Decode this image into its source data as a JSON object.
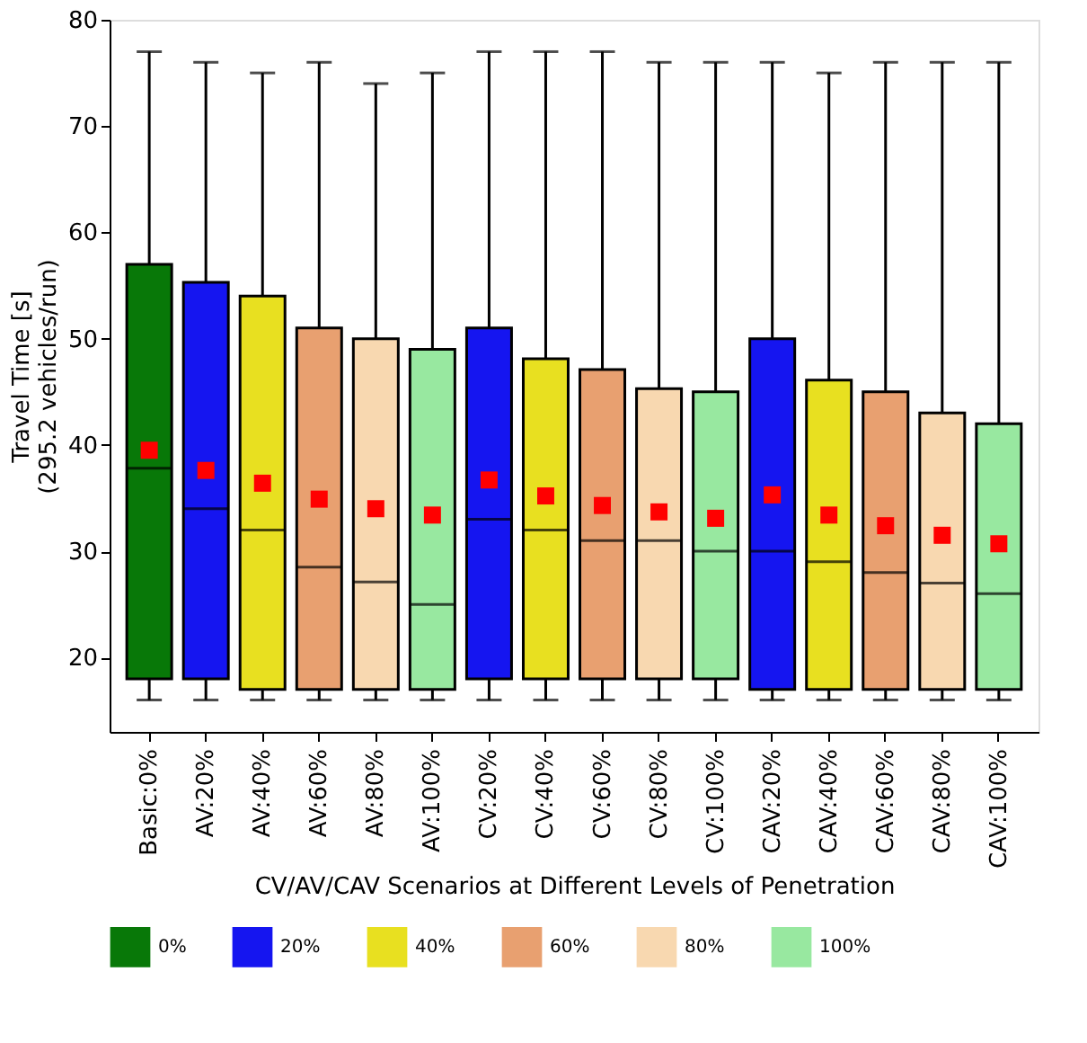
{
  "chart_data": {
    "type": "box",
    "xlabel": "CV/AV/CAV Scenarios at Different Levels of Penetration",
    "ylabel": "Travel Time [s]\n(295.2 vehicles/run)",
    "categories": [
      "Basic:0%",
      "AV:20%",
      "AV:40%",
      "AV:60%",
      "AV:80%",
      "AV:100%",
      "CV:20%",
      "CV:40%",
      "CV:60%",
      "CV:80%",
      "CV:100%",
      "CAV:20%",
      "CAV:40%",
      "CAV:60%",
      "CAV:80%",
      "CAV:100%"
    ],
    "ylim": [
      13,
      80
    ],
    "yticks": [
      20,
      30,
      40,
      50,
      60,
      70,
      80
    ],
    "grid": false,
    "legend": "bottom",
    "series": [
      {
        "name": "0%",
        "color": "#087808",
        "boxes": [
          {
            "low": 16,
            "q1": 18,
            "median": 37.8,
            "q3": 57,
            "high": 77,
            "mean": 39.5
          },
          null,
          null,
          null,
          null,
          null,
          null,
          null,
          null,
          null,
          null,
          null,
          null,
          null,
          null,
          null
        ]
      },
      {
        "name": "20%",
        "color": "#1515f0",
        "boxes": [
          null,
          {
            "low": 16,
            "q1": 18,
            "median": 34,
            "q3": 55.3,
            "high": 76,
            "mean": 37.6
          },
          null,
          null,
          null,
          null,
          {
            "low": 16,
            "q1": 18,
            "median": 33,
            "q3": 51,
            "high": 77,
            "mean": 36.7
          },
          null,
          null,
          null,
          null,
          {
            "low": 16,
            "q1": 17,
            "median": 30,
            "q3": 50,
            "high": 76,
            "mean": 35.3
          },
          null,
          null,
          null,
          null
        ]
      },
      {
        "name": "40%",
        "color": "#e8e020",
        "boxes": [
          null,
          null,
          {
            "low": 16,
            "q1": 17,
            "median": 32,
            "q3": 54,
            "high": 75,
            "mean": 36.4
          },
          null,
          null,
          null,
          null,
          {
            "low": 16,
            "q1": 18,
            "median": 32,
            "q3": 48.1,
            "high": 77,
            "mean": 35.2
          },
          null,
          null,
          null,
          null,
          {
            "low": 16,
            "q1": 17,
            "median": 29,
            "q3": 46.1,
            "high": 75,
            "mean": 33.4
          },
          null,
          null,
          null
        ]
      },
      {
        "name": "60%",
        "color": "#e8a070",
        "boxes": [
          null,
          null,
          null,
          {
            "low": 16,
            "q1": 17,
            "median": 28.5,
            "q3": 51,
            "high": 76,
            "mean": 34.9
          },
          null,
          null,
          null,
          null,
          {
            "low": 16,
            "q1": 18,
            "median": 31,
            "q3": 47.1,
            "high": 77,
            "mean": 34.3
          },
          null,
          null,
          null,
          null,
          {
            "low": 16,
            "q1": 17,
            "median": 28,
            "q3": 45,
            "high": 76,
            "mean": 32.4
          },
          null,
          null
        ]
      },
      {
        "name": "80%",
        "color": "#f8d8b0",
        "boxes": [
          null,
          null,
          null,
          null,
          {
            "low": 16,
            "q1": 17,
            "median": 27.1,
            "q3": 50,
            "high": 74,
            "mean": 34
          },
          null,
          null,
          null,
          null,
          {
            "low": 16,
            "q1": 18,
            "median": 31,
            "q3": 45.3,
            "high": 76,
            "mean": 33.7
          },
          null,
          null,
          null,
          null,
          {
            "low": 16,
            "q1": 17,
            "median": 27,
            "q3": 43,
            "high": 76,
            "mean": 31.5
          },
          null
        ]
      },
      {
        "name": "100%",
        "color": "#98e8a0",
        "boxes": [
          null,
          null,
          null,
          null,
          null,
          {
            "low": 16,
            "q1": 17,
            "median": 25,
            "q3": 49,
            "high": 75,
            "mean": 33.4
          },
          null,
          null,
          null,
          null,
          {
            "low": 16,
            "q1": 18,
            "median": 30,
            "q3": 45,
            "high": 76,
            "mean": 33.1
          },
          null,
          null,
          null,
          null,
          {
            "low": 16,
            "q1": 17,
            "median": 26,
            "q3": 42,
            "high": 76,
            "mean": 30.7
          }
        ]
      }
    ]
  }
}
